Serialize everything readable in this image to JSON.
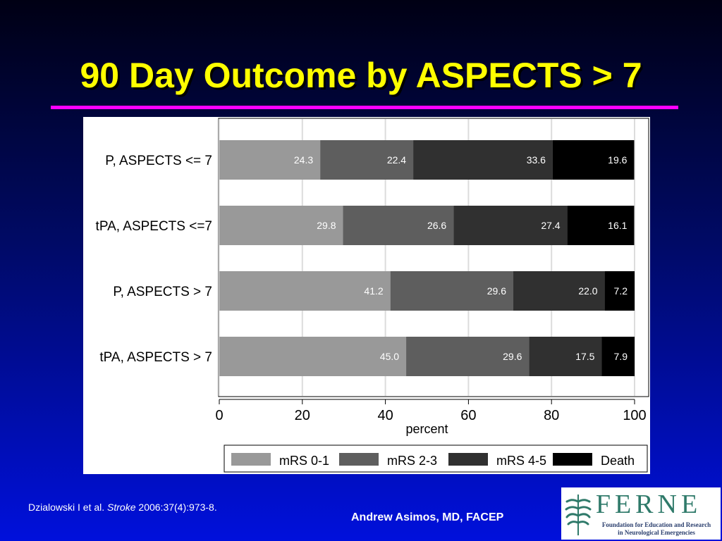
{
  "slide": {
    "title": "90 Day Outcome by ASPECTS > 7",
    "citation_pre": "Dzialowski I et al. ",
    "citation_journal": "Stroke",
    "citation_post": " 2006:37(4):973-8.",
    "author": "Andrew Asimos, MD, FACEP",
    "logo": {
      "letters": "FERNE",
      "tagline_1": "Foundation for Education and Research",
      "tagline_2": "in Neurological Emergencies"
    },
    "colors": {
      "title": "#ffff00",
      "rule": "#ff00ff",
      "logo_green": "#2f7a6a"
    }
  },
  "chart_data": {
    "type": "bar",
    "orientation": "horizontal",
    "stacked": true,
    "title": "",
    "xlabel": "percent",
    "ylabel": "",
    "xlim": [
      0,
      100
    ],
    "xticks": [
      0,
      20,
      40,
      60,
      80,
      100
    ],
    "grid": true,
    "legend_position": "bottom",
    "categories": [
      "P, ASPECTS <= 7",
      "tPA, ASPECTS <=7",
      "P, ASPECTS > 7",
      "tPA, ASPECTS > 7"
    ],
    "series": [
      {
        "name": "mRS 0-1",
        "color": "#999999",
        "values": [
          24.3,
          29.8,
          41.2,
          45.0
        ]
      },
      {
        "name": "mRS 2-3",
        "color": "#5e5e5e",
        "values": [
          22.4,
          26.6,
          29.6,
          29.6
        ]
      },
      {
        "name": "mRS 4-5",
        "color": "#303030",
        "values": [
          33.6,
          27.4,
          22.0,
          17.5
        ]
      },
      {
        "name": "Death",
        "color": "#000000",
        "values": [
          19.6,
          16.1,
          7.2,
          7.9
        ]
      }
    ],
    "value_labels": [
      [
        "24.3",
        "22.4",
        "33.6",
        "19.6"
      ],
      [
        "29.8",
        "26.6",
        "27.4",
        "16.1"
      ],
      [
        "41.2",
        "29.6",
        "22.0",
        "7.2"
      ],
      [
        "45.0",
        "29.6",
        "17.5",
        "7.9"
      ]
    ]
  }
}
